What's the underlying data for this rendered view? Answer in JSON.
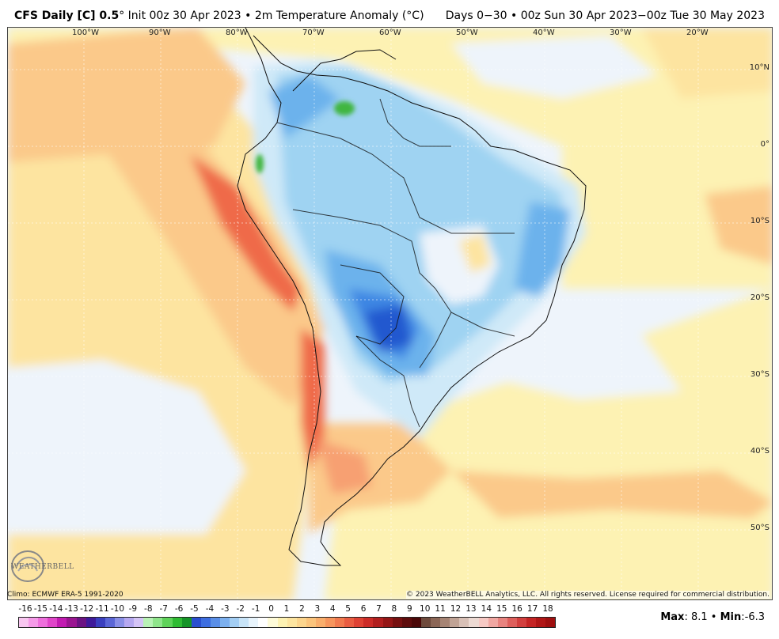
{
  "header": {
    "model": "CFS Daily [C] 0.5",
    "degree_mark": "°",
    "init": "Init 00z 30 Apr 2023",
    "bullet": "•",
    "field": "2m Temperature Anomaly (°C)",
    "valid": "Days 0−30 • 00z Sun 30 Apr 2023−00z Tue 30 May 2023"
  },
  "map": {
    "longitude_labels": [
      "100°W",
      "90°W",
      "80°W",
      "70°W",
      "60°W",
      "50°W",
      "40°W",
      "30°W",
      "20°W"
    ],
    "latitude_labels": [
      "10°N",
      "0°",
      "10°S",
      "20°S",
      "30°S",
      "40°S",
      "50°S"
    ],
    "colors": {
      "ocean_neutral": "#eef4fb",
      "warm1": "#fdf2b3",
      "warm2": "#fde4a0",
      "warm3": "#fbc98a",
      "warm4": "#f7a072",
      "warm5": "#ef6a4a",
      "warm6": "#dd3f2c",
      "cool1": "#cfe9f8",
      "cool2": "#9fd3f2",
      "cool3": "#6cb2ec",
      "cool4": "#3d86e3",
      "cool5": "#2158cf",
      "green": "#3fb63f"
    }
  },
  "footer": {
    "logo_text": "WEATHERBELL",
    "climo": "Climo: ECMWF ERA-5 1991-2020",
    "copyright": "© 2023 WeatherBELL Analytics, LLC. All rights reserved. License required for commercial distribution.",
    "max_label": "Max",
    "max_value": ": 8.1",
    "min_label": "Min",
    "min_value": ":-6.3"
  },
  "colorbar": {
    "ticks": [
      "-16",
      "-15",
      "-14",
      "-13",
      "-12",
      "-11",
      "-10",
      "-9",
      "-8",
      "-7",
      "-6",
      "-5",
      "-4",
      "-3",
      "-2",
      "-1",
      "0",
      "1",
      "2",
      "3",
      "4",
      "5",
      "6",
      "7",
      "8",
      "9",
      "10",
      "11",
      "12",
      "13",
      "14",
      "15",
      "16",
      "17",
      "18"
    ],
    "colors": [
      "#f8c6f0",
      "#f59ae8",
      "#ee6fdc",
      "#e045c9",
      "#c21bb1",
      "#9a1591",
      "#6b1383",
      "#3e1a9a",
      "#3a3fbf",
      "#5b66d6",
      "#8a8fe6",
      "#b6a8f0",
      "#d4c4f6",
      "#b9f2b6",
      "#8fe58b",
      "#5fd35a",
      "#2fbb33",
      "#169428",
      "#2a4fcf",
      "#3d6ee0",
      "#5a8fe8",
      "#7cb0ef",
      "#a3cef4",
      "#c8e4f8",
      "#e8f4fc",
      "#ffffff",
      "#fefbd8",
      "#fdf2b3",
      "#fde5a0",
      "#fcd58d",
      "#fbc47c",
      "#f9ae6c",
      "#f6955d",
      "#f17a4f",
      "#e95d42",
      "#de4234",
      "#cc2c28",
      "#b11f1f",
      "#941616",
      "#761010",
      "#5d0c0c",
      "#4a0808",
      "#6e4a3c",
      "#8b6656",
      "#a68474",
      "#c0a395",
      "#d8c0b6",
      "#eddad3",
      "#f7c9c4",
      "#f1a7a2",
      "#e8837f",
      "#de5f5c",
      "#d23f3e",
      "#c42424",
      "#b01616",
      "#9e0f0f"
    ]
  }
}
